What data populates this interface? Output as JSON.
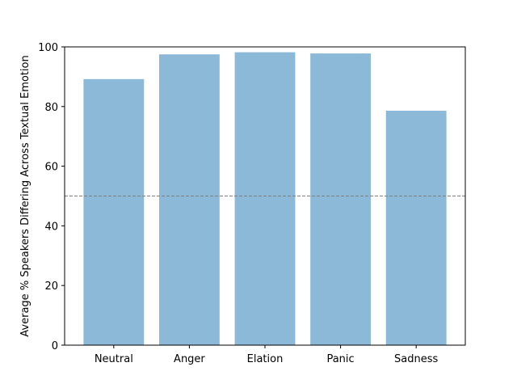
{
  "chart_data": {
    "type": "bar",
    "categories": [
      "Neutral",
      "Anger",
      "Elation",
      "Panic",
      "Sadness"
    ],
    "values": [
      89.2,
      97.5,
      98.2,
      97.8,
      78.6
    ],
    "title": "",
    "xlabel": "",
    "ylabel": "Average % Speakers Differing Across Textual Emotion",
    "ylim": [
      0,
      100
    ],
    "yticks": [
      0,
      20,
      40,
      60,
      80,
      100
    ],
    "reference_line": {
      "value": 50,
      "style": "dashed",
      "color": "#808080"
    },
    "bar_color": "#8db9d9",
    "grid": false,
    "legend": "none"
  }
}
